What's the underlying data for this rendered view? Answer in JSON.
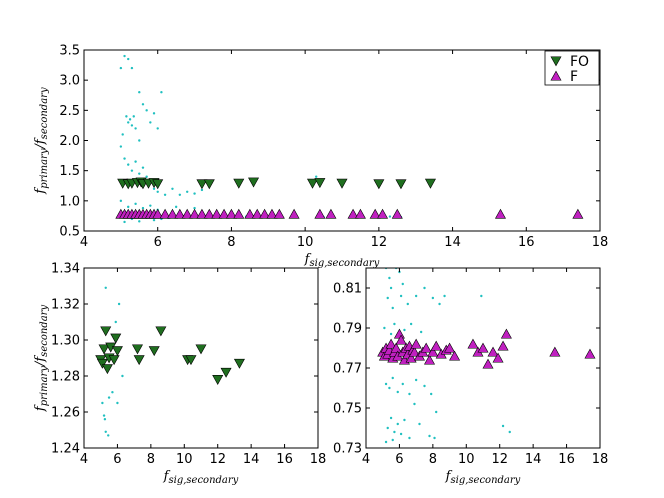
{
  "chart_data": [
    {
      "type": "scatter",
      "panel": "top",
      "xlabel": "f_{sig,secondary}",
      "ylabel": "f_{primary}/f_{secondary}",
      "xlim": [
        4,
        18
      ],
      "ylim": [
        0.5,
        3.5
      ],
      "xticks": [
        "4",
        "6",
        "8",
        "10",
        "12",
        "14",
        "16",
        "18"
      ],
      "yticks": [
        "0.5",
        "1.0",
        "1.5",
        "2.0",
        "2.5",
        "3.0",
        "3.5"
      ],
      "legend": {
        "position": "top-right",
        "entries": [
          "FO",
          "F"
        ]
      },
      "series": [
        {
          "name": "FO",
          "marker": "triangle-down",
          "color": "#1f6e1f",
          "points": [
            [
              5.05,
              1.29
            ],
            [
              5.2,
              1.28
            ],
            [
              5.3,
              1.29
            ],
            [
              5.45,
              1.3
            ],
            [
              5.55,
              1.31
            ],
            [
              5.6,
              1.28
            ],
            [
              5.75,
              1.29
            ],
            [
              5.9,
              1.3
            ],
            [
              6.0,
              1.28
            ],
            [
              7.2,
              1.28
            ],
            [
              7.4,
              1.28
            ],
            [
              8.2,
              1.29
            ],
            [
              8.6,
              1.31
            ],
            [
              10.2,
              1.29
            ],
            [
              10.4,
              1.3
            ],
            [
              11.0,
              1.29
            ],
            [
              12.0,
              1.28
            ],
            [
              12.6,
              1.28
            ],
            [
              13.4,
              1.29
            ]
          ]
        },
        {
          "name": "F",
          "marker": "triangle-up",
          "color": "#c020c0",
          "points": [
            [
              5.0,
              0.78
            ],
            [
              5.1,
              0.78
            ],
            [
              5.2,
              0.78
            ],
            [
              5.3,
              0.78
            ],
            [
              5.4,
              0.78
            ],
            [
              5.5,
              0.78
            ],
            [
              5.6,
              0.78
            ],
            [
              5.7,
              0.78
            ],
            [
              5.8,
              0.78
            ],
            [
              5.9,
              0.78
            ],
            [
              6.0,
              0.78
            ],
            [
              6.2,
              0.78
            ],
            [
              6.4,
              0.78
            ],
            [
              6.6,
              0.78
            ],
            [
              6.8,
              0.78
            ],
            [
              7.0,
              0.78
            ],
            [
              7.2,
              0.78
            ],
            [
              7.4,
              0.78
            ],
            [
              7.6,
              0.78
            ],
            [
              7.8,
              0.78
            ],
            [
              8.0,
              0.78
            ],
            [
              8.2,
              0.78
            ],
            [
              8.5,
              0.78
            ],
            [
              8.7,
              0.78
            ],
            [
              8.9,
              0.78
            ],
            [
              9.1,
              0.78
            ],
            [
              9.3,
              0.78
            ],
            [
              9.7,
              0.78
            ],
            [
              10.4,
              0.78
            ],
            [
              10.7,
              0.78
            ],
            [
              11.3,
              0.78
            ],
            [
              11.5,
              0.78
            ],
            [
              11.9,
              0.78
            ],
            [
              12.1,
              0.78
            ],
            [
              12.5,
              0.78
            ],
            [
              15.3,
              0.78
            ],
            [
              17.4,
              0.78
            ]
          ]
        },
        {
          "name": "",
          "marker": "dot",
          "color": "#20c0c0",
          "points": [
            [
              5.0,
              3.2
            ],
            [
              5.1,
              3.4
            ],
            [
              5.2,
              3.35
            ],
            [
              5.3,
              3.2
            ],
            [
              5.15,
              2.4
            ],
            [
              5.2,
              2.3
            ],
            [
              5.25,
              2.35
            ],
            [
              5.3,
              2.25
            ],
            [
              5.35,
              2.4
            ],
            [
              5.4,
              2.2
            ],
            [
              5.05,
              2.1
            ],
            [
              5.5,
              2.0
            ],
            [
              5.6,
              2.6
            ],
            [
              5.7,
              2.5
            ],
            [
              5.8,
              2.3
            ],
            [
              5.9,
              2.45
            ],
            [
              6.0,
              2.2
            ],
            [
              6.1,
              2.8
            ],
            [
              5.5,
              2.8
            ],
            [
              5.0,
              1.9
            ],
            [
              5.1,
              1.7
            ],
            [
              5.2,
              1.6
            ],
            [
              5.3,
              1.5
            ],
            [
              5.4,
              1.65
            ],
            [
              5.5,
              1.45
            ],
            [
              5.6,
              1.55
            ],
            [
              5.7,
              1.4
            ],
            [
              5.8,
              1.35
            ],
            [
              5.9,
              1.2
            ],
            [
              6.0,
              1.15
            ],
            [
              6.2,
              1.1
            ],
            [
              6.4,
              1.2
            ],
            [
              6.6,
              1.1
            ],
            [
              6.8,
              1.15
            ],
            [
              7.0,
              1.12
            ],
            [
              7.2,
              1.18
            ],
            [
              5.0,
              1.0
            ],
            [
              5.2,
              0.9
            ],
            [
              5.4,
              0.95
            ],
            [
              5.6,
              0.88
            ],
            [
              5.8,
              0.92
            ],
            [
              6.0,
              0.85
            ],
            [
              6.5,
              0.9
            ],
            [
              7.0,
              0.88
            ],
            [
              5.1,
              0.65
            ],
            [
              5.3,
              0.7
            ],
            [
              5.5,
              0.66
            ],
            [
              5.7,
              0.72
            ],
            [
              5.9,
              0.68
            ],
            [
              6.1,
              0.7
            ],
            [
              6.3,
              0.72
            ],
            [
              6.5,
              0.74
            ],
            [
              6.8,
              0.73
            ],
            [
              7.2,
              0.74
            ],
            [
              7.6,
              0.73
            ],
            [
              8.0,
              0.74
            ],
            [
              8.4,
              0.74
            ],
            [
              9.0,
              0.74
            ],
            [
              10.3,
              1.4
            ],
            [
              10.5,
              0.73
            ],
            [
              11.5,
              0.74
            ],
            [
              12.3,
              0.74
            ],
            [
              12.6,
              0.73
            ]
          ]
        }
      ]
    },
    {
      "type": "scatter",
      "panel": "bottom-left",
      "xlabel": "f_{sig,secondary}",
      "ylabel": "f_{primary}/f_{secondary}",
      "xlim": [
        4,
        18
      ],
      "ylim": [
        1.24,
        1.34
      ],
      "xticks": [
        "4",
        "6",
        "8",
        "10",
        "12",
        "14",
        "16",
        "18"
      ],
      "yticks": [
        "1.24",
        "1.26",
        "1.28",
        "1.30",
        "1.32",
        "1.34"
      ],
      "series": [
        {
          "name": "FO",
          "marker": "triangle-down",
          "color": "#1f6e1f",
          "points": [
            [
              5.0,
              1.289
            ],
            [
              5.1,
              1.287
            ],
            [
              5.2,
              1.295
            ],
            [
              5.3,
              1.305
            ],
            [
              5.4,
              1.284
            ],
            [
              5.5,
              1.29
            ],
            [
              5.6,
              1.296
            ],
            [
              5.8,
              1.289
            ],
            [
              5.9,
              1.301
            ],
            [
              6.0,
              1.294
            ],
            [
              7.2,
              1.295
            ],
            [
              7.3,
              1.289
            ],
            [
              8.2,
              1.294
            ],
            [
              8.6,
              1.305
            ],
            [
              10.2,
              1.289
            ],
            [
              10.4,
              1.289
            ],
            [
              11.0,
              1.295
            ],
            [
              12.0,
              1.278
            ],
            [
              12.5,
              1.282
            ],
            [
              13.3,
              1.287
            ]
          ]
        },
        {
          "name": "",
          "marker": "dot",
          "color": "#20c0c0",
          "points": [
            [
              5.3,
              1.329
            ],
            [
              5.1,
              1.265
            ],
            [
              5.2,
              1.258
            ],
            [
              5.25,
              1.256
            ],
            [
              5.3,
              1.249
            ],
            [
              5.45,
              1.247
            ],
            [
              5.5,
              1.268
            ],
            [
              5.7,
              1.271
            ],
            [
              6.0,
              1.265
            ],
            [
              6.1,
              1.32
            ],
            [
              5.9,
              1.31
            ],
            [
              6.3,
              1.28
            ]
          ]
        }
      ]
    },
    {
      "type": "scatter",
      "panel": "bottom-right",
      "xlabel": "f_{sig,secondary}",
      "ylabel": "",
      "xlim": [
        4,
        18
      ],
      "ylim": [
        0.73,
        0.82
      ],
      "xticks": [
        "4",
        "6",
        "8",
        "10",
        "12",
        "14",
        "16",
        "18"
      ],
      "yticks": [
        "0.73",
        "0.75",
        "0.77",
        "0.79",
        "0.81"
      ],
      "series": [
        {
          "name": "F",
          "marker": "triangle-up",
          "color": "#c020c0",
          "points": [
            [
              5.0,
              0.778
            ],
            [
              5.1,
              0.776
            ],
            [
              5.2,
              0.78
            ],
            [
              5.3,
              0.777
            ],
            [
              5.4,
              0.779
            ],
            [
              5.5,
              0.782
            ],
            [
              5.6,
              0.775
            ],
            [
              5.7,
              0.778
            ],
            [
              5.8,
              0.78
            ],
            [
              5.9,
              0.776
            ],
            [
              6.0,
              0.787
            ],
            [
              6.1,
              0.784
            ],
            [
              6.2,
              0.778
            ],
            [
              6.3,
              0.774
            ],
            [
              6.4,
              0.78
            ],
            [
              6.5,
              0.777
            ],
            [
              6.6,
              0.781
            ],
            [
              6.7,
              0.775
            ],
            [
              6.8,
              0.779
            ],
            [
              6.9,
              0.778
            ],
            [
              7.0,
              0.782
            ],
            [
              7.2,
              0.776
            ],
            [
              7.4,
              0.778
            ],
            [
              7.6,
              0.78
            ],
            [
              7.8,
              0.774
            ],
            [
              8.0,
              0.778
            ],
            [
              8.2,
              0.781
            ],
            [
              8.5,
              0.777
            ],
            [
              8.8,
              0.779
            ],
            [
              9.0,
              0.78
            ],
            [
              9.3,
              0.776
            ],
            [
              10.4,
              0.782
            ],
            [
              10.7,
              0.778
            ],
            [
              11.0,
              0.78
            ],
            [
              11.3,
              0.772
            ],
            [
              11.6,
              0.778
            ],
            [
              11.9,
              0.775
            ],
            [
              12.2,
              0.781
            ],
            [
              12.4,
              0.787
            ],
            [
              15.3,
              0.778
            ],
            [
              17.4,
              0.777
            ]
          ]
        },
        {
          "name": "",
          "marker": "dot",
          "color": "#20c0c0",
          "points": [
            [
              5.2,
              0.82
            ],
            [
              5.4,
              0.815
            ],
            [
              5.5,
              0.81
            ],
            [
              5.8,
              0.82
            ],
            [
              6.0,
              0.818
            ],
            [
              6.2,
              0.812
            ],
            [
              5.3,
              0.805
            ],
            [
              5.6,
              0.8
            ],
            [
              6.1,
              0.806
            ],
            [
              6.5,
              0.802
            ],
            [
              7.0,
              0.806
            ],
            [
              7.5,
              0.81
            ],
            [
              8.0,
              0.805
            ],
            [
              8.4,
              0.802
            ],
            [
              8.7,
              0.806
            ],
            [
              10.9,
              0.806
            ],
            [
              5.1,
              0.79
            ],
            [
              5.5,
              0.787
            ],
            [
              5.7,
              0.792
            ],
            [
              6.3,
              0.789
            ],
            [
              6.7,
              0.792
            ],
            [
              7.3,
              0.788
            ],
            [
              5.2,
              0.762
            ],
            [
              5.4,
              0.76
            ],
            [
              5.6,
              0.765
            ],
            [
              5.9,
              0.758
            ],
            [
              6.2,
              0.762
            ],
            [
              6.6,
              0.757
            ],
            [
              7.0,
              0.764
            ],
            [
              7.5,
              0.761
            ],
            [
              7.9,
              0.757
            ],
            [
              5.3,
              0.74
            ],
            [
              5.5,
              0.745
            ],
            [
              5.7,
              0.738
            ],
            [
              5.9,
              0.742
            ],
            [
              6.1,
              0.737
            ],
            [
              6.3,
              0.744
            ],
            [
              6.6,
              0.735
            ],
            [
              7.2,
              0.742
            ],
            [
              7.8,
              0.736
            ],
            [
              8.1,
              0.735
            ],
            [
              5.2,
              0.733
            ],
            [
              5.6,
              0.734
            ],
            [
              12.2,
              0.741
            ],
            [
              12.6,
              0.738
            ],
            [
              6.9,
              0.752
            ],
            [
              8.2,
              0.748
            ]
          ]
        }
      ]
    }
  ]
}
